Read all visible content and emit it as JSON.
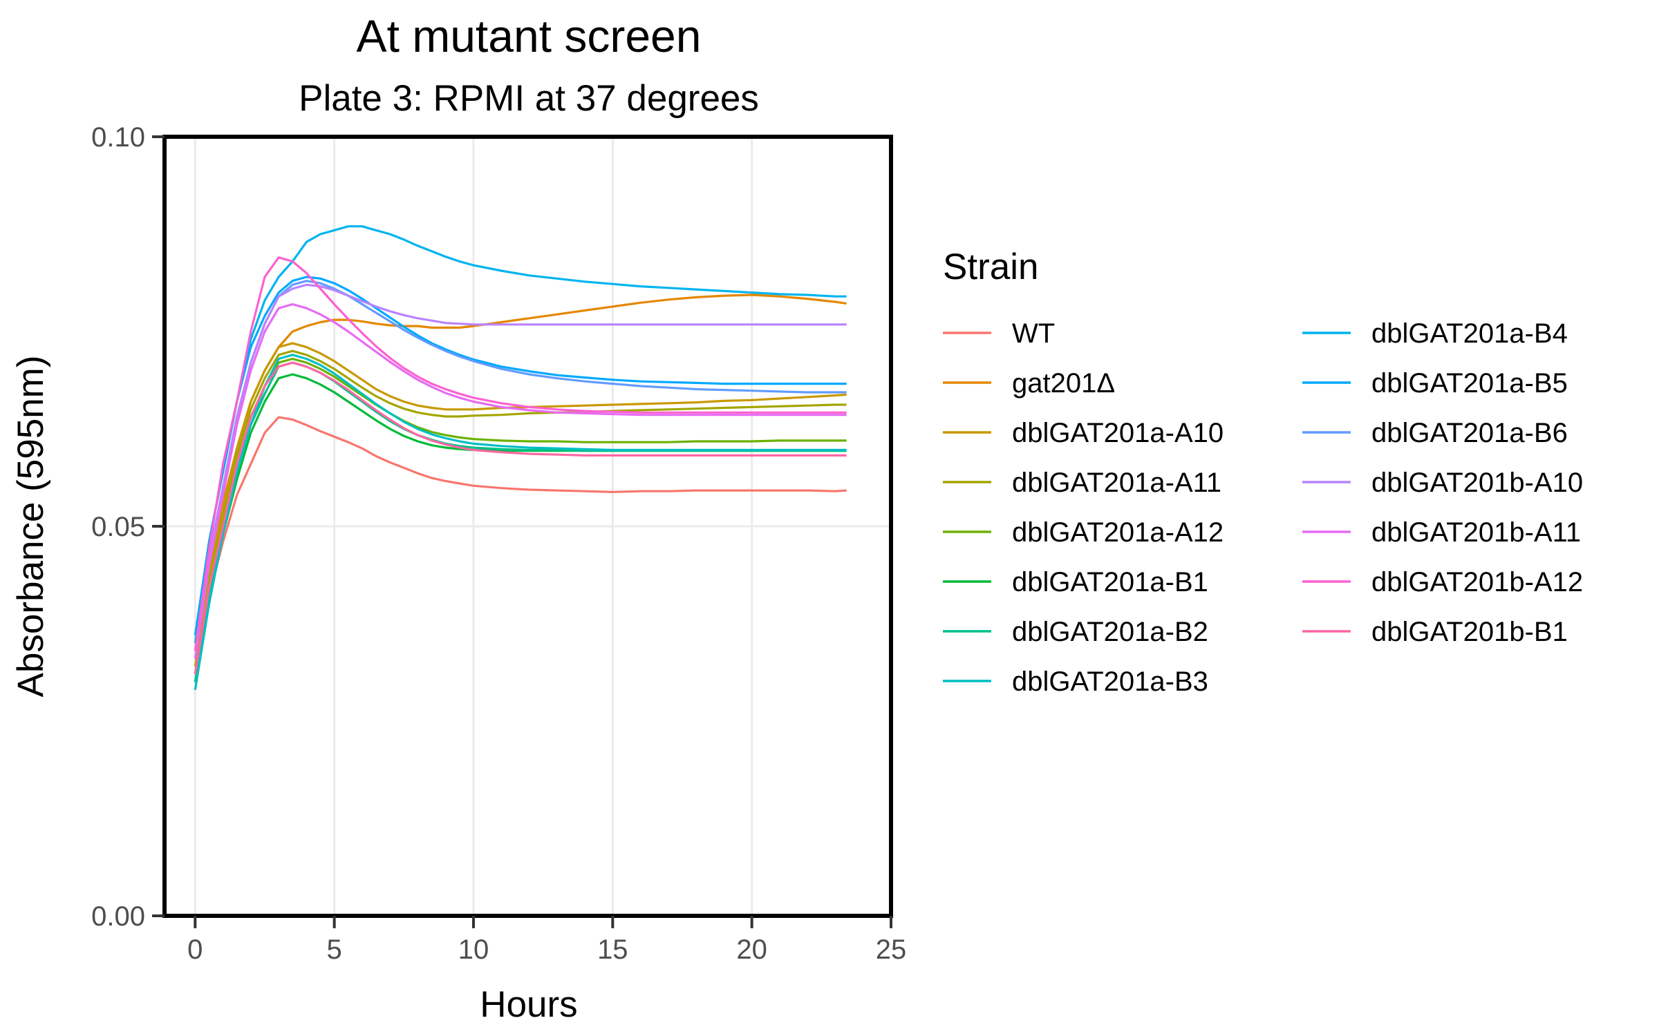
{
  "chart_data": {
    "type": "line",
    "title": "At mutant screen",
    "subtitle": "Plate 3: RPMI at 37 degrees",
    "xlabel": "Hours",
    "ylabel": "Absorbance (595nm)",
    "xlim": [
      -1.1,
      25
    ],
    "ylim": [
      0,
      0.1
    ],
    "x_ticks": [
      0,
      5,
      10,
      15,
      20,
      25
    ],
    "x_tick_labels": [
      "0",
      "5",
      "10",
      "15",
      "20",
      "25"
    ],
    "y_ticks": [
      0,
      0.05,
      0.1
    ],
    "y_tick_labels": [
      "0.00",
      "0.05",
      "0.10"
    ],
    "grid": true,
    "legend_title": "Strain",
    "legend_position": "right",
    "x": [
      0,
      0.5,
      1,
      1.5,
      2,
      2.5,
      3,
      3.5,
      4,
      4.5,
      5,
      5.5,
      6,
      6.5,
      7,
      7.5,
      8,
      8.5,
      9,
      9.5,
      10,
      11,
      12,
      13,
      14,
      15,
      16,
      17,
      18,
      19,
      20,
      21,
      22,
      23,
      23.4
    ],
    "series": [
      {
        "name": "WT",
        "color": "#F8766D",
        "values": [
          0.031,
          0.041,
          0.048,
          0.054,
          0.058,
          0.062,
          0.064,
          0.0637,
          0.063,
          0.0622,
          0.0615,
          0.0608,
          0.06,
          0.059,
          0.0582,
          0.0575,
          0.0568,
          0.0562,
          0.0558,
          0.0555,
          0.0552,
          0.0549,
          0.0547,
          0.0546,
          0.0545,
          0.0544,
          0.0545,
          0.0545,
          0.0546,
          0.0546,
          0.0546,
          0.0546,
          0.0546,
          0.0545,
          0.0546
        ]
      },
      {
        "name": "gat201Δ",
        "color": "#E58700",
        "values": [
          0.034,
          0.045,
          0.053,
          0.06,
          0.066,
          0.07,
          0.073,
          0.075,
          0.0757,
          0.0762,
          0.0765,
          0.0765,
          0.0763,
          0.076,
          0.0758,
          0.0757,
          0.0757,
          0.0755,
          0.0755,
          0.0755,
          0.0757,
          0.0762,
          0.0767,
          0.0772,
          0.0777,
          0.0782,
          0.0787,
          0.0791,
          0.0794,
          0.0796,
          0.0797,
          0.0795,
          0.0792,
          0.0788,
          0.0786
        ]
      },
      {
        "name": "dblGAT201a-A10",
        "color": "#C99800",
        "values": [
          0.033,
          0.044,
          0.052,
          0.06,
          0.066,
          0.07,
          0.073,
          0.0735,
          0.073,
          0.0722,
          0.0712,
          0.07,
          0.0688,
          0.0676,
          0.0667,
          0.066,
          0.0655,
          0.0652,
          0.065,
          0.065,
          0.065,
          0.0652,
          0.0653,
          0.0654,
          0.0655,
          0.0656,
          0.0657,
          0.0658,
          0.0659,
          0.0661,
          0.0662,
          0.0664,
          0.0666,
          0.0668,
          0.0669
        ]
      },
      {
        "name": "dblGAT201a-A11",
        "color": "#A3A500",
        "values": [
          0.032,
          0.043,
          0.051,
          0.059,
          0.065,
          0.069,
          0.072,
          0.0725,
          0.072,
          0.0712,
          0.0702,
          0.069,
          0.0678,
          0.0667,
          0.0658,
          0.0651,
          0.0646,
          0.0643,
          0.0641,
          0.0641,
          0.0642,
          0.0643,
          0.0645,
          0.0646,
          0.0647,
          0.0648,
          0.0649,
          0.065,
          0.0651,
          0.0652,
          0.0653,
          0.0654,
          0.0655,
          0.0656,
          0.0656
        ]
      },
      {
        "name": "dblGAT201a-A12",
        "color": "#6BB100",
        "values": [
          0.031,
          0.042,
          0.05,
          0.058,
          0.064,
          0.068,
          0.071,
          0.0715,
          0.071,
          0.0702,
          0.0692,
          0.068,
          0.0668,
          0.0656,
          0.0645,
          0.0635,
          0.0627,
          0.0621,
          0.0617,
          0.0614,
          0.0612,
          0.061,
          0.0609,
          0.0609,
          0.0608,
          0.0608,
          0.0608,
          0.0608,
          0.0609,
          0.0609,
          0.0609,
          0.061,
          0.061,
          0.061,
          0.061
        ]
      },
      {
        "name": "dblGAT201a-B1",
        "color": "#00BA38",
        "values": [
          0.03,
          0.041,
          0.049,
          0.056,
          0.062,
          0.066,
          0.069,
          0.0695,
          0.069,
          0.0682,
          0.0672,
          0.066,
          0.0648,
          0.0636,
          0.0625,
          0.0616,
          0.0609,
          0.0604,
          0.0601,
          0.0599,
          0.0598,
          0.0597,
          0.0597,
          0.0597,
          0.0597,
          0.0597,
          0.0597,
          0.0597,
          0.0597,
          0.0597,
          0.0597,
          0.0597,
          0.0597,
          0.0597,
          0.0597
        ]
      },
      {
        "name": "dblGAT201a-B2",
        "color": "#00C08B",
        "values": [
          0.03,
          0.041,
          0.05,
          0.057,
          0.063,
          0.067,
          0.0705,
          0.071,
          0.0705,
          0.0697,
          0.0686,
          0.0673,
          0.066,
          0.0647,
          0.0635,
          0.0625,
          0.0617,
          0.0611,
          0.0606,
          0.0603,
          0.0601,
          0.0599,
          0.0598,
          0.0598,
          0.0597,
          0.0597,
          0.0597,
          0.0597,
          0.0597,
          0.0597,
          0.0597,
          0.0597,
          0.0597,
          0.0597,
          0.0597
        ]
      },
      {
        "name": "dblGAT201a-B3",
        "color": "#00BFC4",
        "values": [
          0.029,
          0.04,
          0.049,
          0.057,
          0.063,
          0.068,
          0.0715,
          0.072,
          0.0715,
          0.0707,
          0.0696,
          0.0683,
          0.067,
          0.0657,
          0.0645,
          0.0634,
          0.0625,
          0.0618,
          0.0613,
          0.0609,
          0.0606,
          0.0603,
          0.0601,
          0.06,
          0.0599,
          0.0598,
          0.0598,
          0.0598,
          0.0598,
          0.0598,
          0.0598,
          0.0598,
          0.0598,
          0.0598,
          0.0598
        ]
      },
      {
        "name": "dblGAT201a-B4",
        "color": "#00B4EF",
        "values": [
          0.035,
          0.048,
          0.057,
          0.066,
          0.074,
          0.079,
          0.082,
          0.084,
          0.0865,
          0.0875,
          0.088,
          0.0885,
          0.0885,
          0.088,
          0.0875,
          0.0868,
          0.086,
          0.0853,
          0.0846,
          0.084,
          0.0835,
          0.0828,
          0.0822,
          0.0818,
          0.0814,
          0.0811,
          0.0808,
          0.0806,
          0.0804,
          0.0802,
          0.08,
          0.0798,
          0.0797,
          0.0795,
          0.0795
        ]
      },
      {
        "name": "dblGAT201a-B5",
        "color": "#00A9FF",
        "values": [
          0.036,
          0.048,
          0.057,
          0.066,
          0.073,
          0.077,
          0.08,
          0.0815,
          0.082,
          0.0818,
          0.0812,
          0.0803,
          0.0792,
          0.078,
          0.0768,
          0.0756,
          0.0745,
          0.0735,
          0.0727,
          0.072,
          0.0714,
          0.0705,
          0.0699,
          0.0694,
          0.0691,
          0.0688,
          0.0686,
          0.0685,
          0.0684,
          0.0683,
          0.0683,
          0.0683,
          0.0683,
          0.0683,
          0.0683
        ]
      },
      {
        "name": "dblGAT201a-B6",
        "color": "#619CFF",
        "values": [
          0.034,
          0.046,
          0.055,
          0.064,
          0.071,
          0.076,
          0.0795,
          0.081,
          0.0815,
          0.0812,
          0.0805,
          0.0796,
          0.0785,
          0.0774,
          0.0763,
          0.0752,
          0.0742,
          0.0733,
          0.0725,
          0.0718,
          0.0712,
          0.0702,
          0.0695,
          0.069,
          0.0686,
          0.0683,
          0.068,
          0.0678,
          0.0676,
          0.0675,
          0.0674,
          0.0673,
          0.0672,
          0.0672,
          0.0672
        ]
      },
      {
        "name": "dblGAT201b-A10",
        "color": "#B983FF",
        "values": [
          0.034,
          0.046,
          0.055,
          0.064,
          0.071,
          0.076,
          0.0795,
          0.0805,
          0.081,
          0.0808,
          0.0803,
          0.0796,
          0.0789,
          0.0782,
          0.0776,
          0.0771,
          0.0767,
          0.0764,
          0.0761,
          0.076,
          0.0759,
          0.0759,
          0.0759,
          0.0759,
          0.0759,
          0.0759,
          0.0759,
          0.0759,
          0.0759,
          0.0759,
          0.0759,
          0.0759,
          0.0759,
          0.0759,
          0.0759
        ]
      },
      {
        "name": "dblGAT201b-A11",
        "color": "#E76BF3",
        "values": [
          0.033,
          0.045,
          0.054,
          0.063,
          0.07,
          0.075,
          0.078,
          0.0785,
          0.078,
          0.0772,
          0.0762,
          0.075,
          0.0737,
          0.0724,
          0.0711,
          0.0699,
          0.0688,
          0.0679,
          0.0671,
          0.0665,
          0.066,
          0.0653,
          0.0649,
          0.0646,
          0.0645,
          0.0644,
          0.0643,
          0.0643,
          0.0643,
          0.0643,
          0.0643,
          0.0643,
          0.0643,
          0.0643,
          0.0643
        ]
      },
      {
        "name": "dblGAT201b-A12",
        "color": "#FD61D1",
        "values": [
          0.034,
          0.047,
          0.058,
          0.066,
          0.075,
          0.082,
          0.0845,
          0.084,
          0.0825,
          0.0805,
          0.0785,
          0.0766,
          0.0748,
          0.0731,
          0.0716,
          0.0703,
          0.0692,
          0.0683,
          0.0676,
          0.067,
          0.0665,
          0.0658,
          0.0653,
          0.065,
          0.0648,
          0.0647,
          0.0646,
          0.0646,
          0.0646,
          0.0646,
          0.0646,
          0.0646,
          0.0646,
          0.0646,
          0.0646
        ]
      },
      {
        "name": "dblGAT201b-B1",
        "color": "#FF67A4",
        "values": [
          0.031,
          0.042,
          0.05,
          0.058,
          0.064,
          0.068,
          0.0705,
          0.071,
          0.0705,
          0.0697,
          0.0687,
          0.0675,
          0.0662,
          0.0649,
          0.0637,
          0.0626,
          0.0617,
          0.061,
          0.0605,
          0.0601,
          0.0598,
          0.0595,
          0.0593,
          0.0592,
          0.0591,
          0.0591,
          0.0591,
          0.0591,
          0.0591,
          0.0591,
          0.0591,
          0.0591,
          0.0591,
          0.0591,
          0.0591
        ]
      }
    ]
  }
}
